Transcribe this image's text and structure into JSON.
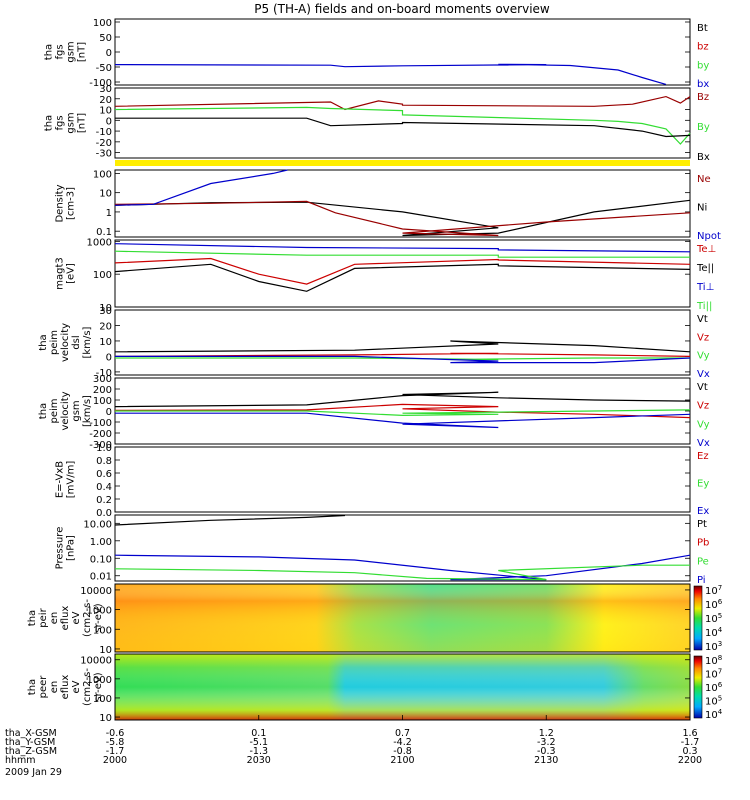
{
  "title": "P5 (TH-A) fields and on-board moments overview",
  "colors": {
    "black": "#000000",
    "red": "#cc0000",
    "green": "#33dd33",
    "blue": "#0000cc",
    "darkred": "#990000",
    "yellow": "#ffee00"
  },
  "chart_data": [
    {
      "type": "line",
      "panel": "fgs-magnitude",
      "ylabel": [
        "tha",
        "fgs",
        "gsm",
        "[nT]"
      ],
      "yticks": [
        "100",
        "50",
        "0",
        "-50",
        "-100"
      ],
      "ylim": [
        -110,
        110
      ],
      "legend": [
        {
          "name": "Bt",
          "color": "#000000"
        },
        {
          "name": "bz",
          "color": "#cc0000"
        },
        {
          "name": "by",
          "color": "#33dd33"
        },
        {
          "name": "bx",
          "color": "#0000cc"
        }
      ],
      "series": [
        {
          "name": "bx",
          "color": "#0000cc",
          "x": [
            2000,
            2020,
            2045,
            2048,
            2060,
            2090,
            2120,
            2135,
            2145,
            2150,
            2155
          ],
          "y": [
            -42,
            -43,
            -44,
            -49,
            -46,
            -42,
            -41,
            -45,
            -60,
            -85,
            -108
          ]
        }
      ]
    },
    {
      "type": "line",
      "panel": "fgs-components",
      "ylabel": [
        "tha",
        "fgs",
        "gsm",
        "[nT]"
      ],
      "yticks": [
        "30",
        "20",
        "10",
        "0",
        "-10",
        "-20",
        "-30"
      ],
      "ylim": [
        -35,
        30
      ],
      "legend": [
        {
          "name": "Bz",
          "color": "#990000"
        },
        {
          "name": "By",
          "color": "#33dd33"
        },
        {
          "name": "Bx",
          "color": "#000000"
        }
      ],
      "series": [
        {
          "name": "Bz",
          "color": "#990000",
          "x": [
            2000,
            2045,
            2048,
            2055,
            2060,
            2100,
            2140,
            2148,
            2155,
            2158,
            2160
          ],
          "y": [
            13,
            17,
            10,
            18,
            15,
            14,
            13,
            15,
            22,
            16,
            22
          ]
        },
        {
          "name": "By",
          "color": "#33dd33",
          "x": [
            2000,
            2040,
            2045,
            2060,
            2100,
            2140,
            2145,
            2150,
            2155,
            2158,
            2160
          ],
          "y": [
            10,
            12,
            11,
            9,
            5,
            0,
            -1,
            -3,
            -8,
            -22,
            -12
          ]
        },
        {
          "name": "Bx",
          "color": "#000000",
          "x": [
            2000,
            2040,
            2045,
            2060,
            2100,
            2140,
            2150,
            2155,
            2160
          ],
          "y": [
            2,
            2,
            -5,
            -3,
            -2,
            -5,
            -10,
            -15,
            -14
          ]
        }
      ]
    },
    {
      "type": "line",
      "panel": "density",
      "ylabel": [
        "Density",
        "[cm-3]"
      ],
      "scale": "log",
      "yticks": [
        "100",
        "10",
        "1",
        "0.1"
      ],
      "ylim": [
        0.05,
        150
      ],
      "legend": [
        {
          "name": "Ne",
          "color": "#990000"
        },
        {
          "name": "Ni",
          "color": "#000000"
        },
        {
          "name": "Npot",
          "color": "#0000cc"
        }
      ],
      "series": [
        {
          "name": "Ni",
          "color": "#000000",
          "x": [
            2000,
            2020,
            2040,
            2060,
            2080,
            2100,
            2120,
            2140,
            2160
          ],
          "y": [
            2.2,
            3,
            3.2,
            1,
            0.15,
            0.06,
            0.08,
            1,
            4
          ]
        },
        {
          "name": "Ne",
          "color": "#990000",
          "x": [
            2000,
            2020,
            2040,
            2046,
            2060,
            2080,
            2100,
            2130,
            2160
          ],
          "y": [
            2.5,
            2.8,
            3.5,
            0.9,
            0.13,
            0.06,
            0.08,
            0.3,
            0.9
          ]
        },
        {
          "name": "Npot",
          "color": "#0000cc",
          "x": [
            2000,
            2008,
            2020,
            2033,
            2036
          ],
          "y": [
            2.2,
            2.5,
            30,
            100,
            150
          ]
        }
      ]
    },
    {
      "type": "line",
      "panel": "temperature",
      "ylabel": [
        "magt3",
        "[eV]"
      ],
      "scale": "log",
      "yticks": [
        "1000",
        "100",
        "10"
      ],
      "ylim": [
        10,
        1100
      ],
      "legend": [
        {
          "name": "Te⊥",
          "color": "#cc0000"
        },
        {
          "name": "Te||",
          "color": "#000000"
        },
        {
          "name": "Ti⊥",
          "color": "#0000cc"
        },
        {
          "name": "Ti||",
          "color": "#33dd33"
        }
      ],
      "series": [
        {
          "name": "Ti⊥",
          "color": "#0000cc",
          "x": [
            2000,
            2040,
            2080,
            2120,
            2160
          ],
          "y": [
            850,
            650,
            600,
            550,
            480
          ]
        },
        {
          "name": "Ti||",
          "color": "#33dd33",
          "x": [
            2000,
            2040,
            2080,
            2120,
            2160
          ],
          "y": [
            500,
            380,
            380,
            330,
            330
          ]
        },
        {
          "name": "Te⊥",
          "color": "#cc0000",
          "x": [
            2000,
            2020,
            2030,
            2040,
            2050,
            2080,
            2120,
            2160
          ],
          "y": [
            220,
            300,
            100,
            50,
            200,
            280,
            270,
            200
          ]
        },
        {
          "name": "Te||",
          "color": "#000000",
          "x": [
            2000,
            2020,
            2030,
            2040,
            2050,
            2080,
            2120,
            2160
          ],
          "y": [
            120,
            200,
            60,
            30,
            150,
            200,
            180,
            140
          ]
        }
      ]
    },
    {
      "type": "line",
      "panel": "peim-velocity-dsl",
      "ylabel": [
        "tha",
        "peim",
        "velocity",
        "dsl",
        "[km/s]"
      ],
      "yticks": [
        "30",
        "20",
        "10",
        "0",
        "-10"
      ],
      "ylim": [
        -12,
        30
      ],
      "legend": [
        {
          "name": "Vt",
          "color": "#000000"
        },
        {
          "name": "Vz",
          "color": "#cc0000"
        },
        {
          "name": "Vy",
          "color": "#33dd33"
        },
        {
          "name": "Vx",
          "color": "#0000cc"
        }
      ],
      "series": [
        {
          "name": "Vt",
          "color": "#000000",
          "x": [
            2000,
            2050,
            2080,
            2110,
            2140,
            2160
          ],
          "y": [
            3,
            4,
            8,
            10,
            7,
            3
          ]
        },
        {
          "name": "Vz",
          "color": "#cc0000",
          "x": [
            2000,
            2050,
            2080,
            2110,
            2140,
            2160
          ],
          "y": [
            0,
            1,
            2,
            2,
            1,
            0
          ]
        },
        {
          "name": "Vy",
          "color": "#33dd33",
          "x": [
            2000,
            2050,
            2080,
            2110,
            2140,
            2160
          ],
          "y": [
            -1,
            -1,
            -2,
            -2,
            -1,
            -1
          ]
        },
        {
          "name": "Vx",
          "color": "#0000cc",
          "x": [
            2000,
            2050,
            2080,
            2110,
            2140,
            2160
          ],
          "y": [
            0,
            0,
            -3,
            -4,
            -4,
            -1
          ]
        }
      ]
    },
    {
      "type": "line",
      "panel": "peim-velocity-gsm",
      "ylabel": [
        "tha",
        "peim",
        "velocity",
        "gsm",
        "[km/s]"
      ],
      "yticks": [
        "300",
        "200",
        "100",
        "0",
        "-100",
        "-200",
        "-300"
      ],
      "ylim": [
        -300,
        300
      ],
      "legend": [
        {
          "name": "Vt",
          "color": "#000000"
        },
        {
          "name": "Vz",
          "color": "#cc0000"
        },
        {
          "name": "Vy",
          "color": "#33dd33"
        },
        {
          "name": "Vx",
          "color": "#0000cc"
        }
      ],
      "series": [
        {
          "name": "Vt",
          "color": "#000000",
          "x": [
            2000,
            2040,
            2060,
            2080,
            2100,
            2120,
            2140,
            2160
          ],
          "y": [
            40,
            55,
            140,
            170,
            150,
            120,
            100,
            90
          ]
        },
        {
          "name": "Vz",
          "color": "#cc0000",
          "x": [
            2000,
            2040,
            2060,
            2080,
            2100,
            2120,
            2140,
            2160
          ],
          "y": [
            5,
            10,
            60,
            40,
            20,
            -10,
            -30,
            -60
          ]
        },
        {
          "name": "Vy",
          "color": "#33dd33",
          "x": [
            2000,
            2040,
            2060,
            2080,
            2100,
            2120,
            2140,
            2160
          ],
          "y": [
            0,
            0,
            -40,
            -30,
            -20,
            -10,
            0,
            10
          ]
        },
        {
          "name": "Vx",
          "color": "#0000cc",
          "x": [
            2000,
            2040,
            2060,
            2080,
            2100,
            2120,
            2140,
            2160
          ],
          "y": [
            -20,
            -20,
            -110,
            -150,
            -120,
            -90,
            -60,
            -30
          ]
        }
      ]
    },
    {
      "type": "line",
      "panel": "efield",
      "ylabel": [
        "E=-VxB",
        "[mV/m]"
      ],
      "yticks": [
        "1.0",
        "0.8",
        "0.6",
        "0.4",
        "0.2",
        "0.0"
      ],
      "ylim": [
        0,
        1
      ],
      "legend": [
        {
          "name": "Ez",
          "color": "#cc0000"
        },
        {
          "name": "Ey",
          "color": "#33dd33"
        },
        {
          "name": "Ex",
          "color": "#0000cc"
        }
      ],
      "series": []
    },
    {
      "type": "line",
      "panel": "pressure",
      "ylabel": [
        "Pressure",
        "[nPa]"
      ],
      "scale": "log",
      "yticks": [
        "10.00",
        "1.00",
        "0.10",
        "0.01"
      ],
      "ylim": [
        0.005,
        30
      ],
      "legend": [
        {
          "name": "Pt",
          "color": "#000000"
        },
        {
          "name": "Pb",
          "color": "#cc0000"
        },
        {
          "name": "Pe",
          "color": "#33dd33"
        },
        {
          "name": "Pi",
          "color": "#0000cc"
        }
      ],
      "series": [
        {
          "name": "Pt",
          "color": "#000000",
          "x": [
            2000,
            2020,
            2040,
            2048
          ],
          "y": [
            8,
            15,
            22,
            28
          ]
        },
        {
          "name": "Pi",
          "color": "#0000cc",
          "x": [
            2000,
            2030,
            2050,
            2070,
            2090,
            2110,
            2130,
            2150,
            2160
          ],
          "y": [
            0.15,
            0.12,
            0.08,
            0.02,
            0.006,
            0.006,
            0.01,
            0.05,
            0.15
          ]
        },
        {
          "name": "Pe",
          "color": "#33dd33",
          "x": [
            2000,
            2030,
            2050,
            2065,
            2090,
            2120,
            2150,
            2160
          ],
          "y": [
            0.025,
            0.02,
            0.015,
            0.007,
            0.006,
            0.02,
            0.04,
            0.04
          ]
        }
      ]
    },
    {
      "type": "heatmap",
      "panel": "peir-en-eflux",
      "ylabel": [
        "tha",
        "peir",
        "en",
        "eflux",
        "eV",
        "(cm2-s-",
        "sr-eV)"
      ],
      "yticks": [
        "10000",
        "1000",
        "100",
        "10"
      ],
      "ylim": [
        7,
        20000
      ],
      "scale": "log",
      "colorbar": {
        "labels": [
          "10^7",
          "10^6",
          "10^5",
          "10^4",
          "10^3"
        ]
      }
    },
    {
      "type": "heatmap",
      "panel": "peer-en-eflux",
      "ylabel": [
        "tha",
        "peer",
        "en",
        "eflux",
        "eV",
        "(cm2-s-",
        "sr-eV)"
      ],
      "yticks": [
        "10000",
        "1000",
        "100",
        "10"
      ],
      "ylim": [
        7,
        20000
      ],
      "scale": "log",
      "colorbar": {
        "labels": [
          "10^8",
          "10^7",
          "10^6",
          "10^5",
          "10^4"
        ]
      }
    }
  ],
  "xaxis": {
    "range": [
      2000,
      2200
    ],
    "tick_positions": [
      2000,
      2030,
      2100,
      2130,
      2200
    ],
    "rows": [
      {
        "label": "tha_X-GSM",
        "values": [
          "-0.6",
          "0.1",
          "0.7",
          "1.2",
          "1.6"
        ]
      },
      {
        "label": "tha_Y-GSM",
        "values": [
          "-5.8",
          "-5.1",
          "-4.2",
          "-3.2",
          "-1.7"
        ]
      },
      {
        "label": "tha_Z-GSM",
        "values": [
          "-1.7",
          "-1.3",
          "-0.8",
          "-0.3",
          "0.3"
        ]
      },
      {
        "label": "hhmm",
        "values": [
          "2000",
          "2030",
          "2100",
          "2130",
          "2200"
        ]
      }
    ],
    "date": "2009 Jan 29"
  }
}
